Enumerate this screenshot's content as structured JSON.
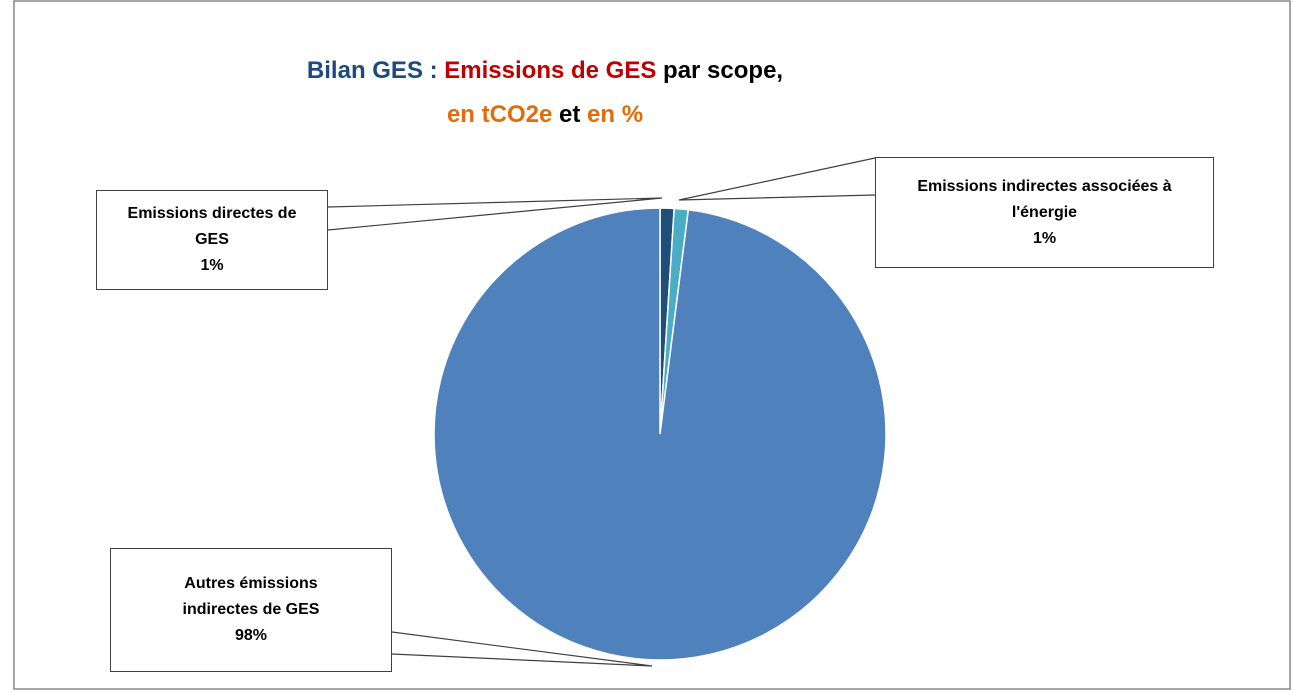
{
  "chart_data": {
    "type": "pie",
    "title": [
      "Bilan GES :",
      "Emissions de GES",
      "par scope,",
      "en tCO2e",
      "et",
      "en %"
    ],
    "title_colors": [
      "#1f497d",
      "#c00000",
      "#000000",
      "#e36c09",
      "#000000",
      "#e36c09"
    ],
    "categories": [
      "Emissions directes de GES",
      "Emissions indirectes associées à l'énergie",
      "Autres émissions indirectes de GES"
    ],
    "values": [
      1,
      1,
      98
    ],
    "value_labels": [
      "1%",
      "1%",
      "98%"
    ],
    "colors": [
      "#1f4e79",
      "#4bacc6",
      "#4f81bd"
    ]
  }
}
